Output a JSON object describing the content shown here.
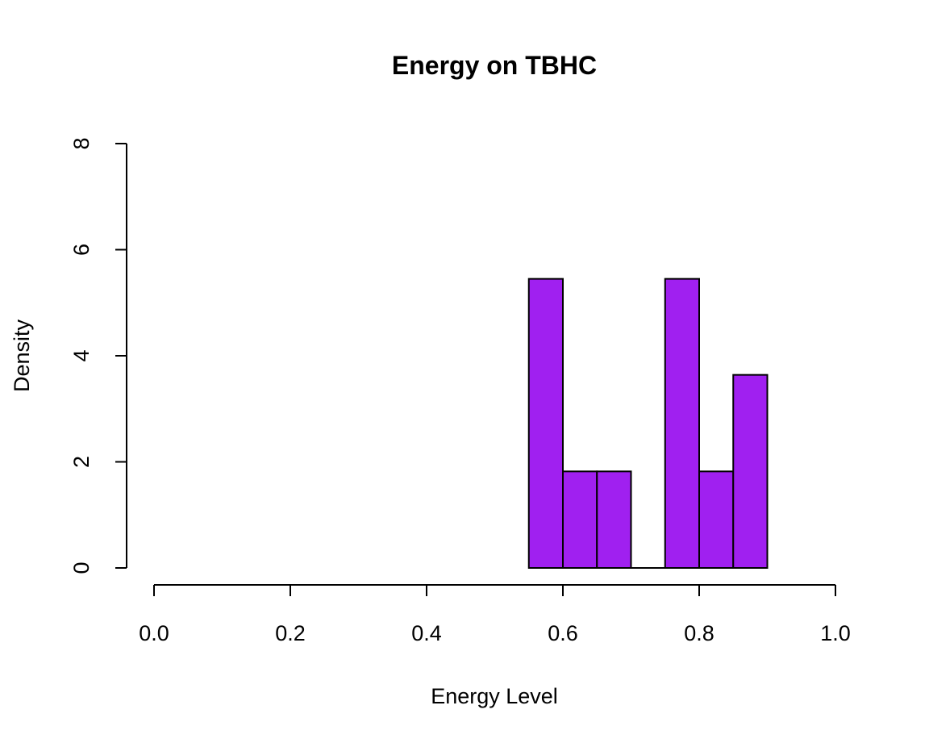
{
  "chart_data": {
    "type": "bar",
    "subtype": "histogram",
    "title": "Energy on TBHC",
    "xlabel": "Energy Level",
    "ylabel": "Density",
    "xlim": [
      0,
      1
    ],
    "ylim": [
      0,
      8
    ],
    "x_ticks": [
      "0.0",
      "0.2",
      "0.4",
      "0.6",
      "0.8",
      "1.0"
    ],
    "y_ticks": [
      "0",
      "2",
      "4",
      "6",
      "8"
    ],
    "bins": [
      {
        "start": 0.55,
        "end": 0.6,
        "density": 5.45
      },
      {
        "start": 0.6,
        "end": 0.65,
        "density": 1.82
      },
      {
        "start": 0.65,
        "end": 0.7,
        "density": 1.82
      },
      {
        "start": 0.7,
        "end": 0.75,
        "density": 0.0
      },
      {
        "start": 0.75,
        "end": 0.8,
        "density": 5.45
      },
      {
        "start": 0.8,
        "end": 0.85,
        "density": 1.82
      },
      {
        "start": 0.85,
        "end": 0.9,
        "density": 3.64
      }
    ],
    "bar_color": "#A020F0",
    "border_color": "#000000",
    "grid": false
  }
}
